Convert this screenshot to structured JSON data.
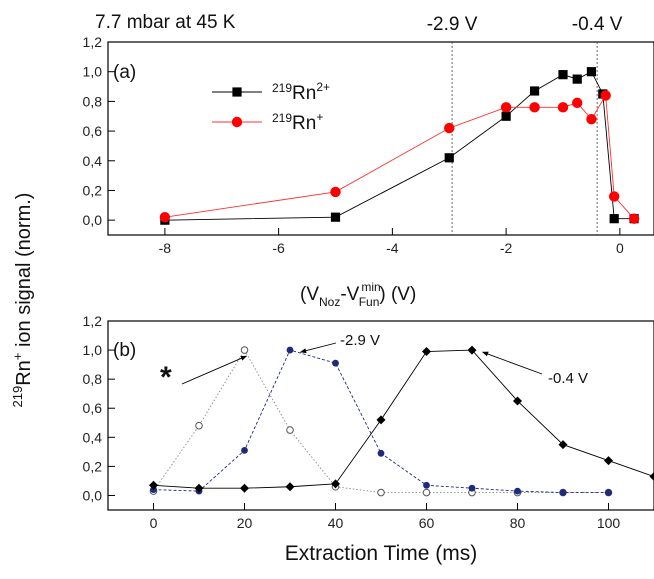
{
  "chart_data": [
    {
      "id": "a",
      "type": "line",
      "panel_label": "(a)",
      "annotation": "7.7 mbar at 45 K",
      "xlabel": {
        "pre": "(V",
        "sub1": "Noz",
        "mid": "-V",
        "sup": "min",
        "sub2": "Fun",
        "post": ") (V)"
      },
      "xlim": [
        -9,
        0.6
      ],
      "ylim": [
        -0.1,
        1.2
      ],
      "xticks": [
        -8,
        -6,
        -4,
        -2,
        0
      ],
      "yticks": [
        "0,0",
        "0,2",
        "0,4",
        "0,6",
        "0,8",
        "1,0",
        "1,2"
      ],
      "ytick_values": [
        0,
        0.2,
        0.4,
        0.6,
        0.8,
        1.0,
        1.2
      ],
      "vlines": [
        {
          "x": -2.95,
          "label": "-2.9 V"
        },
        {
          "x": -0.4,
          "label": "-0.4 V"
        }
      ],
      "series": [
        {
          "name_sup": "219",
          "name_main": "Rn",
          "name_charge": "2+",
          "color": "#000000",
          "marker": "square",
          "x": [
            -8,
            -5,
            -3,
            -2,
            -1.5,
            -1,
            -0.75,
            -0.5,
            -0.3,
            -0.1,
            0.25
          ],
          "y": [
            0.0,
            0.02,
            0.42,
            0.7,
            0.87,
            0.98,
            0.95,
            1.0,
            0.85,
            0.01,
            0.01
          ]
        },
        {
          "name_sup": "219",
          "name_main": "Rn",
          "name_charge": "+",
          "color": "#ff0000",
          "marker": "circle",
          "x": [
            -8,
            -5,
            -3,
            -2,
            -1.5,
            -1,
            -0.75,
            -0.5,
            -0.25,
            -0.1,
            0.25
          ],
          "y": [
            0.02,
            0.19,
            0.62,
            0.76,
            0.76,
            0.76,
            0.79,
            0.68,
            0.84,
            0.16,
            0.01
          ]
        }
      ]
    },
    {
      "id": "b",
      "type": "line",
      "panel_label": "(b)",
      "xlabel": "Extraction Time (ms)",
      "xlim": [
        -10,
        110
      ],
      "ylim": [
        -0.1,
        1.2
      ],
      "xticks": [
        0,
        20,
        40,
        60,
        80,
        100
      ],
      "yticks": [
        "0,0",
        "0,2",
        "0,4",
        "0,6",
        "0,8",
        "1,0",
        "1,2"
      ],
      "ytick_values": [
        0,
        0.2,
        0.4,
        0.6,
        0.8,
        1.0,
        1.2
      ],
      "annotations": [
        {
          "text": "*",
          "at": [
            20,
            1.0
          ]
        },
        {
          "text": "-2.9 V",
          "at": [
            31,
            1.0
          ]
        },
        {
          "text": "-0.4 V",
          "at": [
            71,
            1.0
          ]
        }
      ],
      "series": [
        {
          "color": "#888888",
          "marker": "open-circle",
          "dash": "1.5,2",
          "x": [
            0,
            10,
            20,
            30,
            40,
            50,
            60,
            70,
            80,
            90,
            100
          ],
          "y": [
            0.03,
            0.48,
            1.0,
            0.45,
            0.06,
            0.02,
            0.02,
            0.02,
            0.02,
            0.02,
            0.02
          ]
        },
        {
          "color": "#1f2a7a",
          "marker": "circle",
          "dash": "3,2",
          "x": [
            0,
            10,
            20,
            30,
            40,
            50,
            60,
            70,
            80,
            90,
            100
          ],
          "y": [
            0.04,
            0.03,
            0.31,
            1.0,
            0.91,
            0.29,
            0.07,
            0.05,
            0.03,
            0.02,
            0.02
          ]
        },
        {
          "color": "#000000",
          "marker": "diamond",
          "dash": "",
          "x": [
            0,
            10,
            20,
            30,
            40,
            50,
            60,
            70,
            80,
            90,
            100,
            110
          ],
          "y": [
            0.07,
            0.05,
            0.05,
            0.06,
            0.08,
            0.52,
            0.99,
            1.0,
            0.65,
            0.35,
            0.24,
            0.13
          ]
        }
      ]
    }
  ],
  "ylabel": {
    "sup": "219",
    "main": "Rn",
    "charge": "+",
    "rest": " ion signal (norm.)"
  }
}
